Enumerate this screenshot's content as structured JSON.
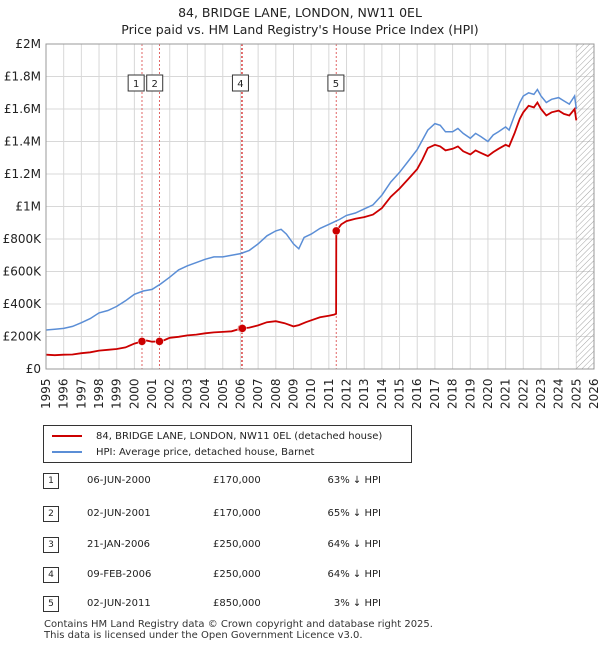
{
  "title_line1": "84, BRIDGE LANE, LONDON, NW11 0EL",
  "title_line2": "Price paid vs. HM Land Registry's House Price Index (HPI)",
  "colors": {
    "property": "#cc0000",
    "hpi": "#5b8ed6",
    "marker": "#cc0000",
    "vline": "#e06666",
    "hatch": "#999999",
    "grid": "#d8d8d8"
  },
  "chart_data": {
    "type": "line",
    "title": "84, BRIDGE LANE, LONDON, NW11 0EL — Price paid vs. HM Land Registry's House Price Index (HPI)",
    "xlim": [
      1995,
      2026
    ],
    "ylim": [
      0,
      2000000
    ],
    "x_ticks": [
      1995,
      1996,
      1997,
      1998,
      1999,
      2000,
      2001,
      2002,
      2003,
      2004,
      2005,
      2006,
      2007,
      2008,
      2009,
      2010,
      2011,
      2012,
      2013,
      2014,
      2015,
      2016,
      2017,
      2018,
      2019,
      2020,
      2021,
      2022,
      2023,
      2024,
      2025,
      2026
    ],
    "y_ticks": [
      0,
      200000,
      400000,
      600000,
      800000,
      1000000,
      1200000,
      1400000,
      1600000,
      1800000,
      2000000
    ],
    "y_tick_labels": [
      "£0",
      "£200K",
      "£400K",
      "£600K",
      "£800K",
      "£1M",
      "£1.2M",
      "£1.4M",
      "£1.6M",
      "£1.8M",
      "£2M"
    ],
    "forecast_region_start": 2025.0,
    "series": [
      {
        "name": "84, BRIDGE LANE, LONDON, NW11 0EL (detached house)",
        "x": [
          1995.0,
          1995.5,
          1996.0,
          1996.5,
          1997.0,
          1997.5,
          1998.0,
          1998.5,
          1999.0,
          1999.5,
          2000.0,
          2000.43,
          2000.7,
          2001.0,
          2001.42,
          2001.7,
          2002.0,
          2002.5,
          2003.0,
          2003.5,
          2004.0,
          2004.5,
          2005.0,
          2005.5,
          2006.06,
          2006.11,
          2006.5,
          2007.0,
          2007.5,
          2008.0,
          2008.5,
          2009.0,
          2009.3,
          2009.7,
          2010.0,
          2010.5,
          2011.0,
          2011.3,
          2011.41,
          2011.42,
          2011.7,
          2012.0,
          2012.5,
          2013.0,
          2013.5,
          2014.0,
          2014.5,
          2015.0,
          2015.5,
          2016.0,
          2016.3,
          2016.6,
          2017.0,
          2017.3,
          2017.6,
          2018.0,
          2018.3,
          2018.6,
          2019.0,
          2019.3,
          2019.6,
          2020.0,
          2020.3,
          2020.6,
          2021.0,
          2021.2,
          2021.5,
          2021.8,
          2022.0,
          2022.3,
          2022.6,
          2022.8,
          2023.0,
          2023.3,
          2023.6,
          2024.0,
          2024.3,
          2024.6,
          2024.9,
          2025.0
        ],
        "y": [
          88000,
          85000,
          88000,
          89000,
          97000,
          103000,
          113000,
          118000,
          123000,
          133000,
          156000,
          170000,
          175000,
          168000,
          170000,
          178000,
          192000,
          198000,
          207000,
          212000,
          220000,
          225000,
          228000,
          232000,
          250000,
          250000,
          255000,
          268000,
          288000,
          294000,
          282000,
          262000,
          270000,
          288000,
          300000,
          318000,
          328000,
          335000,
          340000,
          850000,
          890000,
          910000,
          925000,
          935000,
          950000,
          990000,
          1060000,
          1110000,
          1170000,
          1230000,
          1290000,
          1360000,
          1380000,
          1370000,
          1345000,
          1355000,
          1370000,
          1340000,
          1320000,
          1345000,
          1330000,
          1310000,
          1335000,
          1355000,
          1380000,
          1370000,
          1450000,
          1540000,
          1580000,
          1620000,
          1610000,
          1640000,
          1600000,
          1560000,
          1580000,
          1590000,
          1570000,
          1560000,
          1600000,
          1530000
        ]
      },
      {
        "name": "HPI: Average price, detached house, Barnet",
        "x": [
          1995.0,
          1995.5,
          1996.0,
          1996.5,
          1997.0,
          1997.5,
          1998.0,
          1998.5,
          1999.0,
          1999.5,
          2000.0,
          2000.5,
          2001.0,
          2001.5,
          2002.0,
          2002.5,
          2003.0,
          2003.5,
          2004.0,
          2004.5,
          2005.0,
          2005.5,
          2006.0,
          2006.5,
          2007.0,
          2007.5,
          2008.0,
          2008.3,
          2008.6,
          2009.0,
          2009.3,
          2009.6,
          2010.0,
          2010.5,
          2011.0,
          2011.3,
          2011.6,
          2012.0,
          2012.5,
          2013.0,
          2013.5,
          2014.0,
          2014.5,
          2015.0,
          2015.5,
          2016.0,
          2016.3,
          2016.6,
          2017.0,
          2017.3,
          2017.6,
          2018.0,
          2018.3,
          2018.6,
          2019.0,
          2019.3,
          2019.6,
          2020.0,
          2020.3,
          2020.6,
          2021.0,
          2021.2,
          2021.5,
          2021.8,
          2022.0,
          2022.3,
          2022.6,
          2022.8,
          2023.0,
          2023.3,
          2023.6,
          2024.0,
          2024.3,
          2024.6,
          2024.9,
          2025.0
        ],
        "y": [
          240000,
          245000,
          250000,
          262000,
          285000,
          310000,
          345000,
          360000,
          385000,
          420000,
          460000,
          480000,
          490000,
          525000,
          565000,
          610000,
          635000,
          655000,
          675000,
          690000,
          690000,
          700000,
          710000,
          730000,
          770000,
          820000,
          850000,
          860000,
          830000,
          770000,
          740000,
          810000,
          830000,
          865000,
          890000,
          905000,
          920000,
          945000,
          960000,
          985000,
          1010000,
          1070000,
          1150000,
          1210000,
          1280000,
          1350000,
          1410000,
          1470000,
          1510000,
          1500000,
          1460000,
          1460000,
          1480000,
          1450000,
          1420000,
          1450000,
          1430000,
          1400000,
          1440000,
          1460000,
          1490000,
          1470000,
          1560000,
          1640000,
          1680000,
          1700000,
          1690000,
          1720000,
          1680000,
          1640000,
          1660000,
          1670000,
          1650000,
          1630000,
          1680000,
          1600000
        ]
      }
    ],
    "transactions": [
      {
        "num": "1",
        "date": "06-JUN-2000",
        "price": "£170,000",
        "hpi": "63% ↓ HPI",
        "x": 2000.43,
        "y": 170000,
        "label_x": 2000.1
      },
      {
        "num": "2",
        "date": "02-JUN-2001",
        "price": "£170,000",
        "hpi": "65% ↓ HPI",
        "x": 2001.42,
        "y": 170000,
        "label_x": 2001.15
      },
      {
        "num": "3",
        "date": "21-JAN-2006",
        "price": "£250,000",
        "hpi": "64% ↓ HPI",
        "x": 2006.06,
        "y": 250000,
        "label_x": null
      },
      {
        "num": "4",
        "date": "09-FEB-2006",
        "price": "£250,000",
        "hpi": "64% ↓ HPI",
        "x": 2006.11,
        "y": 250000,
        "label_x": 2006.0
      },
      {
        "num": "5",
        "date": "02-JUN-2011",
        "price": "£850,000",
        "hpi": "3% ↓ HPI",
        "x": 2011.42,
        "y": 850000,
        "label_x": 2011.4
      }
    ]
  },
  "legend": {
    "property_label": "84, BRIDGE LANE, LONDON, NW11 0EL (detached house)",
    "hpi_label": "HPI: Average price, detached house, Barnet"
  },
  "footer": {
    "line1": "Contains HM Land Registry data © Crown copyright and database right 2025.",
    "line2": "This data is licensed under the Open Government Licence v3.0."
  }
}
